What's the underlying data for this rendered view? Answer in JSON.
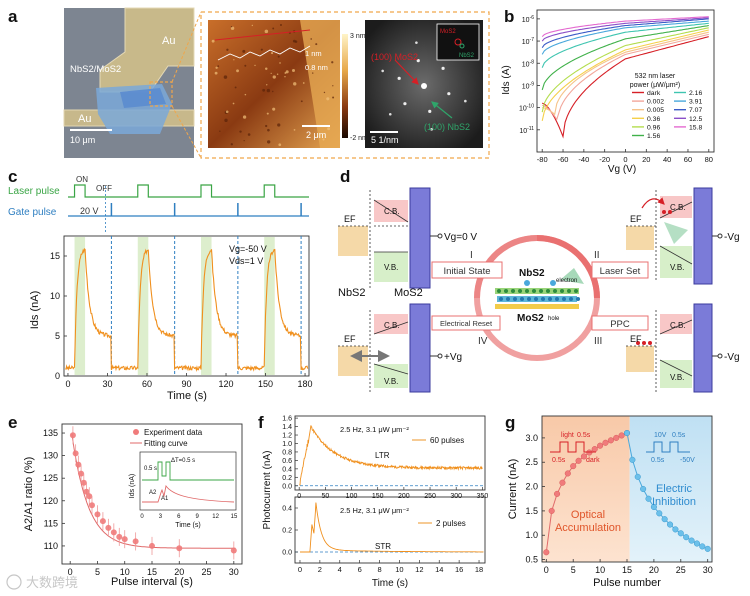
{
  "watermark": "大数跨境",
  "panel_letters": [
    "a",
    "b",
    "c",
    "d",
    "e",
    "f",
    "g"
  ],
  "panel_a": {
    "labels": {
      "au_top": "Au",
      "au_bottom": "Au",
      "hetero": "NbS2/MoS2",
      "scale_10um": "10 μm",
      "scale_2um": "2 μm",
      "scale_5nm": "5 1/nm",
      "h_1nm": "1 nm",
      "h_08nm": "0.8 nm",
      "cbar_max": "3 nm",
      "cbar_min": "-2 nm",
      "mos2_spot": "(100) MoS2",
      "nbs2_spot": "(100) NbS2",
      "inset_mos2": "MoS2",
      "inset_nbs2": "NbS2"
    }
  },
  "panel_b": {
    "xlabel": "Vg (V)",
    "ylabel": "Ids (A)",
    "xlim": [
      -85,
      85
    ],
    "ylim_log10": [
      -12,
      -5.6
    ],
    "xticks": [
      -80,
      -60,
      -40,
      -20,
      0,
      20,
      40,
      60,
      80
    ],
    "yticks": [
      "10^-11",
      "10^-10",
      "10^-9",
      "10^-8",
      "10^-7",
      "10^-6"
    ],
    "legend_title_1": "532 nm laser",
    "legend_title_2": "power (μW/μm²)",
    "series": [
      {
        "name": "dark",
        "color": "#d61f26",
        "min_at": -60,
        "min": -11.3,
        "left": -9.8,
        "at0": -7.8,
        "right": -6.8
      },
      {
        "name": "0.002",
        "color": "#f2a79b",
        "min_at": -65,
        "min": -10.6,
        "left": -9.9,
        "at0": -7.6,
        "right": -6.7
      },
      {
        "name": "0.005",
        "color": "#f5c38a",
        "min_at": -68,
        "min": -10.3,
        "left": -10.0,
        "at0": -7.5,
        "right": -6.6
      },
      {
        "name": "0.36",
        "color": "#f5d04a",
        "min_at": -80,
        "min": -10.6,
        "left": -10.6,
        "at0": -7.4,
        "right": -6.5
      },
      {
        "name": "0.96",
        "color": "#b4dd4e",
        "min_at": -80,
        "min": -10.2,
        "left": -10.2,
        "at0": -7.2,
        "right": -6.4
      },
      {
        "name": "1.56",
        "color": "#40b14a",
        "min_at": -80,
        "min": -9.2,
        "left": -9.2,
        "at0": -6.9,
        "right": -6.3
      },
      {
        "name": "2.16",
        "color": "#3fc5b0",
        "min_at": -80,
        "min": -8.2,
        "left": -8.2,
        "at0": -6.6,
        "right": -6.2
      },
      {
        "name": "3.91",
        "color": "#4aa8dc",
        "min_at": -80,
        "min": -7.6,
        "left": -7.6,
        "at0": -6.4,
        "right": -6.1
      },
      {
        "name": "7.07",
        "color": "#3b5cc7",
        "min_at": -80,
        "min": -7.3,
        "left": -7.3,
        "at0": -6.3,
        "right": -6.0
      },
      {
        "name": "12.5",
        "color": "#8b4fc8",
        "min_at": -80,
        "min": -7.0,
        "left": -7.0,
        "at0": -6.2,
        "right": -5.95
      },
      {
        "name": "15.8",
        "color": "#e46bd0",
        "min_at": -80,
        "min": -6.8,
        "left": -6.8,
        "at0": -6.1,
        "right": -5.9
      }
    ]
  },
  "panel_c": {
    "laser_label": "Laser pulse",
    "gate_label": "Gate pulse",
    "on_label": "ON",
    "off_label": "OFF",
    "gate_v": "20 V",
    "vgs": "Vg=-50 V",
    "vds": "Vds=1 V",
    "xlabel": "Time (s)",
    "ylabel": "Ids (nA)",
    "xlim": [
      -3,
      183
    ],
    "ylim": [
      0,
      17.5
    ],
    "xticks": [
      0,
      30,
      60,
      90,
      120,
      150,
      180
    ],
    "yticks": [
      0,
      5,
      10,
      15
    ],
    "pulse_starts": [
      5,
      53,
      101,
      149
    ],
    "pulse_width": 8,
    "reset_times": [
      33,
      81,
      129,
      177
    ],
    "baseline": 1,
    "peak": 16,
    "after_off": 7,
    "decay_end": 5
  },
  "panel_d": {
    "labels": {
      "ef": "EF",
      "cb": "C.B.",
      "vb": "V.B.",
      "vg0": "Vg=0 V",
      "mvg": "-Vg",
      "pvg": "+Vg",
      "nbs2": "NbS2",
      "mos2": "MoS2",
      "nbs2_b": "NbS2",
      "mos2_b": "MoS2",
      "electron": "electron",
      "hole": "hole",
      "initial": "Initial State",
      "laser_set": "Laser Set",
      "reset": "Electrical Reset",
      "ppc": "PPC",
      "r1": "I",
      "r2": "II",
      "r3": "III",
      "r4": "IV"
    }
  },
  "panel_e": {
    "xlabel": "Pulse interval (s)",
    "ylabel": "A2/A1 ratio (%)",
    "legend_exp": "Experiment data",
    "legend_fit": "Fitting curve",
    "xlim": [
      -1.5,
      31.5
    ],
    "ylim": [
      106,
      137
    ],
    "xticks": [
      0,
      5,
      10,
      15,
      20,
      25,
      30
    ],
    "yticks": [
      110,
      115,
      120,
      125,
      130,
      135
    ],
    "points": [
      {
        "x": 0.5,
        "y": 134.5,
        "e": 2
      },
      {
        "x": 1,
        "y": 130.5,
        "e": 2
      },
      {
        "x": 1.5,
        "y": 128,
        "e": 2
      },
      {
        "x": 2,
        "y": 126,
        "e": 2
      },
      {
        "x": 2.5,
        "y": 124,
        "e": 2
      },
      {
        "x": 3,
        "y": 122,
        "e": 2
      },
      {
        "x": 3.5,
        "y": 121,
        "e": 2
      },
      {
        "x": 4,
        "y": 119,
        "e": 2
      },
      {
        "x": 5,
        "y": 117,
        "e": 2
      },
      {
        "x": 6,
        "y": 115.5,
        "e": 2
      },
      {
        "x": 7,
        "y": 114,
        "e": 2
      },
      {
        "x": 8,
        "y": 113,
        "e": 2
      },
      {
        "x": 9,
        "y": 112,
        "e": 2
      },
      {
        "x": 10,
        "y": 111.5,
        "e": 2
      },
      {
        "x": 12,
        "y": 111,
        "e": 2
      },
      {
        "x": 15,
        "y": 110,
        "e": 2
      },
      {
        "x": 20,
        "y": 109.5,
        "e": 2
      },
      {
        "x": 30,
        "y": 109,
        "e": 2
      }
    ],
    "fit": {
      "y0": 109.5,
      "a": 28,
      "tau": 3
    },
    "inset": {
      "xlabel": "Time (s)",
      "ylabel": "Ids (nA)",
      "xticks": [
        0,
        3,
        6,
        9,
        12,
        15
      ],
      "dt_label": "ΔT=0.5 s",
      "w_label": "0.5 s",
      "a1": "A1",
      "a2": "A2"
    }
  },
  "panel_f": {
    "ylabel": "Photocurrent (nA)",
    "xlabel": "Time (s)",
    "top": {
      "cond": "2.5 Hz, 3.1 μW μm⁻²",
      "legend": "60 pulses",
      "tag": "LTR",
      "xlim": [
        -8,
        355
      ],
      "ylim": [
        -0.1,
        1.65
      ],
      "xticks": [
        0,
        50,
        100,
        150,
        200,
        250,
        300,
        350
      ],
      "yticks": [
        0.0,
        0.2,
        0.4,
        0.6,
        0.8,
        1.0,
        1.2,
        1.4,
        1.6
      ]
    },
    "bottom": {
      "cond": "2.5 Hz, 3.1 μW μm⁻²",
      "legend": "2 pulses",
      "tag": "STR",
      "xlim": [
        -0.5,
        18.6
      ],
      "ylim": [
        -0.1,
        0.5
      ],
      "xticks": [
        0,
        2,
        4,
        6,
        8,
        10,
        12,
        14,
        16,
        18
      ],
      "yticks": [
        0.0,
        0.2,
        0.4
      ]
    }
  },
  "panel_g": {
    "xlabel": "Pulse number",
    "ylabel": "Current (nA)",
    "xlim": [
      -0.8,
      30.8
    ],
    "ylim": [
      0.45,
      3.45
    ],
    "xticks": [
      0,
      5,
      10,
      15,
      20,
      25,
      30
    ],
    "yticks": [
      0.5,
      1.0,
      1.5,
      2.0,
      2.5,
      3.0
    ],
    "optical_1": "Optical",
    "optical_2": "Accumulation",
    "electric_1": "Electric",
    "electric_2": "Inhibition",
    "light": "light",
    "dark": "dark",
    "t05a": "0.5s",
    "t05b": "0.5s",
    "v10": "10V",
    "vm50": "-50V",
    "t05c": "0.5s",
    "t05d": "0.5s",
    "accumulation": [
      0.65,
      1.5,
      1.85,
      2.08,
      2.27,
      2.42,
      2.53,
      2.62,
      2.7,
      2.77,
      2.84,
      2.9,
      2.95,
      3.0,
      3.05,
      3.1
    ],
    "inhibition": [
      3.1,
      2.55,
      2.2,
      1.95,
      1.75,
      1.58,
      1.45,
      1.33,
      1.22,
      1.12,
      1.04,
      0.96,
      0.89,
      0.83,
      0.77,
      0.72
    ],
    "split": 16
  }
}
